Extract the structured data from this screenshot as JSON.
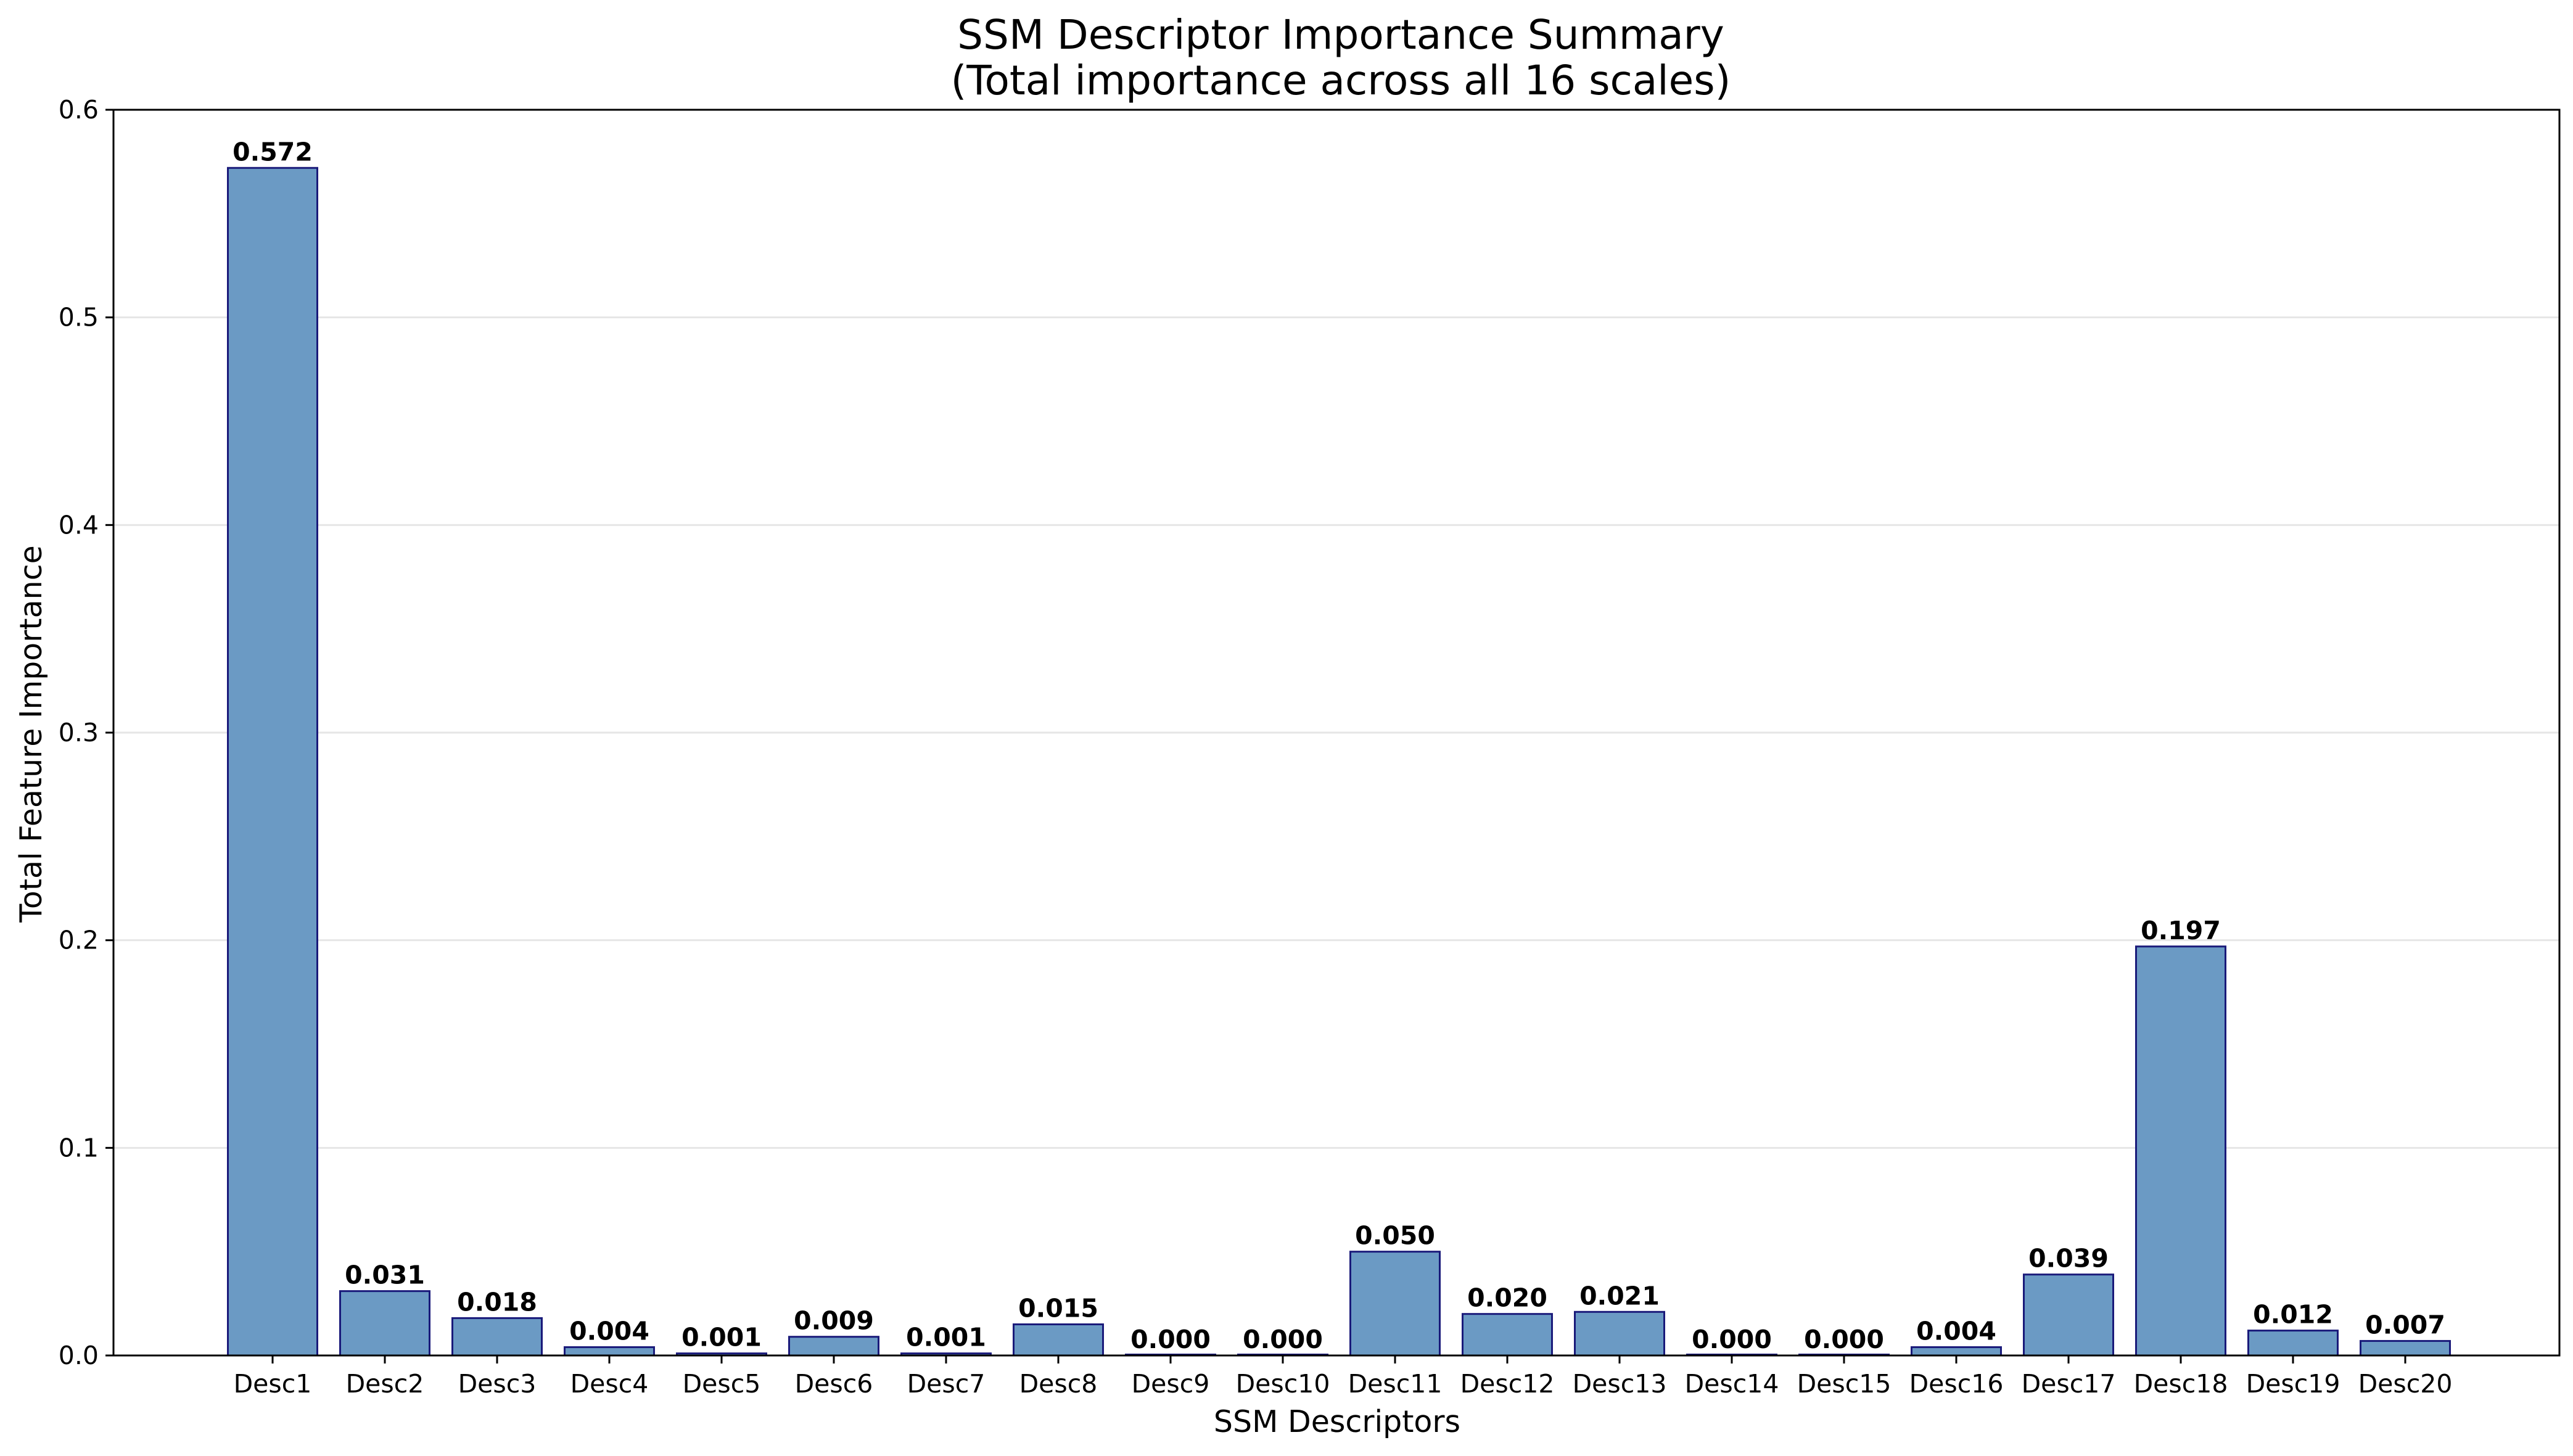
{
  "chart_data": {
    "type": "bar",
    "title": "SSM Descriptor Importance Summary",
    "subtitle": "(Total importance across all 16 scales)",
    "xlabel": "SSM Descriptors",
    "ylabel": "Total Feature Importance",
    "categories": [
      "Desc1",
      "Desc2",
      "Desc3",
      "Desc4",
      "Desc5",
      "Desc6",
      "Desc7",
      "Desc8",
      "Desc9",
      "Desc10",
      "Desc11",
      "Desc12",
      "Desc13",
      "Desc14",
      "Desc15",
      "Desc16",
      "Desc17",
      "Desc18",
      "Desc19",
      "Desc20"
    ],
    "values": [
      0.572,
      0.031,
      0.018,
      0.004,
      0.001,
      0.009,
      0.001,
      0.015,
      0.0,
      0.0,
      0.05,
      0.02,
      0.021,
      0.0,
      0.0,
      0.004,
      0.039,
      0.197,
      0.012,
      0.007
    ],
    "value_labels": [
      "0.572",
      "0.031",
      "0.018",
      "0.004",
      "0.001",
      "0.009",
      "0.001",
      "0.015",
      "0.000",
      "0.000",
      "0.050",
      "0.020",
      "0.021",
      "0.000",
      "0.000",
      "0.004",
      "0.039",
      "0.197",
      "0.012",
      "0.007"
    ],
    "ylim": [
      0,
      0.6
    ],
    "yticks": [
      0.0,
      0.1,
      0.2,
      0.3,
      0.4,
      0.5,
      0.6
    ],
    "ytick_labels": [
      "0.0",
      "0.1",
      "0.2",
      "0.3",
      "0.4",
      "0.5",
      "0.6"
    ],
    "grid": "y-only",
    "colors": {
      "bar_fill": "#6b9ac4",
      "bar_edge": "#1a1a7a",
      "grid": "#e6e6e6",
      "axes": "#000000"
    }
  }
}
